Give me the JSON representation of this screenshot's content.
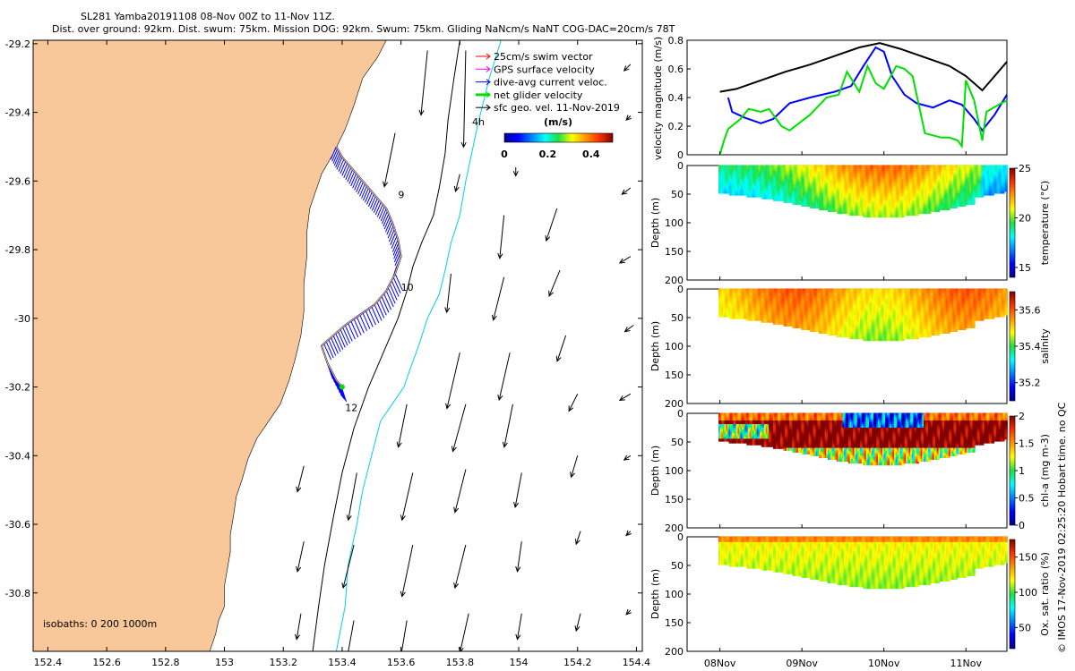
{
  "header": {
    "title_line1": "SL281 Yamba20191108 08-Nov 00Z to 11-Nov 11Z.",
    "title_line2": "Dist. over ground: 92km. Dist. swum: 75km. Mission DOG: 92km. Swum: 75km. Gliding NaNcm/s NaNT COG-DAC=20cm/s 78T"
  },
  "side_note": "© IMOS 17-Nov-2019 02:25:20 Hobart time. no QC",
  "colors": {
    "land": "#f9c89a",
    "track": "#0000ff",
    "net_velocity": "#00e000",
    "isobath_200": "#000000",
    "isobath_1000": "#00d0e8",
    "dac_line": "#0000ff",
    "geo_line": "#000000",
    "gps_line": "#00e000"
  },
  "chart_data": [
    {
      "type": "map",
      "xticks": [
        "152.4",
        "152.6",
        "152.8",
        "153",
        "153.2",
        "153.4",
        "153.6",
        "153.8",
        "154",
        "154.2",
        "154.4"
      ],
      "yticks": [
        "-29.2",
        "-29.4",
        "-29.6",
        "-29.8",
        "-30",
        "-30.2",
        "-30.4",
        "-30.6",
        "-30.8"
      ],
      "xlim": [
        152.35,
        154.42
      ],
      "ylim": [
        -30.97,
        -29.19
      ],
      "legend": [
        {
          "label": "25cm/s swim vector",
          "color": "#ff0000"
        },
        {
          "label": "GPS surface velocity",
          "color": "#ff00ff"
        },
        {
          "label": "dive-avg current veloc.",
          "color": "#0000ff"
        },
        {
          "label": "net glider velocity",
          "color": "#00e000"
        },
        {
          "label": "sfc geo. vel. 11-Nov-2019",
          "color": "#000000"
        }
      ],
      "extra_label": "4h",
      "colorbar": {
        "title": "(m/s)",
        "ticks": [
          "0",
          "0.2",
          "0.4"
        ],
        "range": [
          0,
          0.5
        ]
      },
      "isobath_note": "isobaths: 0   200   1000m",
      "day_labels": [
        {
          "label": "9",
          "lon": 153.59,
          "lat": -29.65
        },
        {
          "label": "10",
          "lon": 153.6,
          "lat": -29.92
        },
        {
          "label": "12",
          "lon": 153.41,
          "lat": -30.27
        }
      ],
      "track": [
        [
          153.38,
          -29.5
        ],
        [
          153.4,
          -29.53
        ],
        [
          153.43,
          -29.56
        ],
        [
          153.46,
          -29.59
        ],
        [
          153.49,
          -29.62
        ],
        [
          153.52,
          -29.65
        ],
        [
          153.55,
          -29.68
        ],
        [
          153.57,
          -29.72
        ],
        [
          153.59,
          -29.77
        ],
        [
          153.6,
          -29.82
        ],
        [
          153.58,
          -29.87
        ],
        [
          153.55,
          -29.92
        ],
        [
          153.51,
          -29.96
        ],
        [
          153.46,
          -29.99
        ],
        [
          153.41,
          -30.02
        ],
        [
          153.37,
          -30.05
        ],
        [
          153.33,
          -30.08
        ],
        [
          153.35,
          -30.13
        ],
        [
          153.38,
          -30.18
        ],
        [
          153.4,
          -30.2
        ]
      ],
      "coast": [
        [
          153.55,
          -29.19
        ],
        [
          153.52,
          -29.24
        ],
        [
          153.47,
          -29.3
        ],
        [
          153.44,
          -29.38
        ],
        [
          153.41,
          -29.45
        ],
        [
          153.37,
          -29.52
        ],
        [
          153.33,
          -29.58
        ],
        [
          153.31,
          -29.63
        ],
        [
          153.29,
          -29.68
        ],
        [
          153.28,
          -29.75
        ],
        [
          153.28,
          -29.82
        ],
        [
          153.27,
          -29.9
        ],
        [
          153.27,
          -29.98
        ],
        [
          153.26,
          -30.05
        ],
        [
          153.24,
          -30.12
        ],
        [
          153.22,
          -30.18
        ],
        [
          153.19,
          -30.25
        ],
        [
          153.15,
          -30.3
        ],
        [
          153.11,
          -30.35
        ],
        [
          153.08,
          -30.41
        ],
        [
          153.06,
          -30.47
        ],
        [
          153.04,
          -30.52
        ],
        [
          153.03,
          -30.58
        ],
        [
          153.02,
          -30.63
        ],
        [
          153.02,
          -30.68
        ],
        [
          153.01,
          -30.73
        ],
        [
          153.0,
          -30.78
        ],
        [
          153.0,
          -30.84
        ],
        [
          152.98,
          -30.88
        ],
        [
          152.97,
          -30.92
        ],
        [
          152.95,
          -30.97
        ]
      ],
      "isobath_200": [
        [
          153.8,
          -29.19
        ],
        [
          153.78,
          -29.3
        ],
        [
          153.76,
          -29.42
        ],
        [
          153.75,
          -29.52
        ],
        [
          153.73,
          -29.62
        ],
        [
          153.71,
          -29.7
        ],
        [
          153.67,
          -29.78
        ],
        [
          153.64,
          -29.85
        ],
        [
          153.62,
          -29.92
        ],
        [
          153.59,
          -30.0
        ],
        [
          153.54,
          -30.1
        ],
        [
          153.49,
          -30.2
        ],
        [
          153.44,
          -30.32
        ],
        [
          153.4,
          -30.45
        ],
        [
          153.37,
          -30.58
        ],
        [
          153.34,
          -30.72
        ],
        [
          153.32,
          -30.84
        ],
        [
          153.3,
          -30.97
        ]
      ],
      "isobath_1000": [
        [
          153.94,
          -29.19
        ],
        [
          153.9,
          -29.3
        ],
        [
          153.86,
          -29.44
        ],
        [
          153.84,
          -29.52
        ],
        [
          153.82,
          -29.6
        ],
        [
          153.8,
          -29.7
        ],
        [
          153.77,
          -29.78
        ],
        [
          153.75,
          -29.86
        ],
        [
          153.73,
          -29.93
        ],
        [
          153.69,
          -30.0
        ],
        [
          153.66,
          -30.08
        ],
        [
          153.63,
          -30.15
        ],
        [
          153.61,
          -30.2
        ],
        [
          153.57,
          -30.25
        ],
        [
          153.53,
          -30.3
        ],
        [
          153.5,
          -30.4
        ],
        [
          153.47,
          -30.5
        ],
        [
          153.45,
          -30.6
        ],
        [
          153.42,
          -30.72
        ],
        [
          153.41,
          -30.84
        ],
        [
          153.38,
          -30.97
        ]
      ],
      "geo_vectors": [
        {
          "lon": 153.82,
          "lat": -29.22,
          "u": -0.01,
          "v": -0.45
        },
        {
          "lon": 153.69,
          "lat": -29.22,
          "u": -0.03,
          "v": -0.3
        },
        {
          "lon": 154.38,
          "lat": -29.26,
          "u": -0.03,
          "v": -0.03
        },
        {
          "lon": 153.58,
          "lat": -29.46,
          "u": -0.05,
          "v": -0.25
        },
        {
          "lon": 154.38,
          "lat": -29.41,
          "u": -0.02,
          "v": -0.02
        },
        {
          "lon": 153.99,
          "lat": -29.56,
          "u": 0.0,
          "v": -0.04
        },
        {
          "lon": 153.8,
          "lat": -29.58,
          "u": -0.02,
          "v": -0.08
        },
        {
          "lon": 153.95,
          "lat": -29.7,
          "u": -0.02,
          "v": -0.2
        },
        {
          "lon": 154.13,
          "lat": -29.68,
          "u": -0.05,
          "v": -0.15
        },
        {
          "lon": 154.38,
          "lat": -29.62,
          "u": -0.04,
          "v": -0.03
        },
        {
          "lon": 153.77,
          "lat": -29.87,
          "u": -0.02,
          "v": -0.18
        },
        {
          "lon": 153.95,
          "lat": -29.88,
          "u": -0.05,
          "v": -0.2
        },
        {
          "lon": 154.14,
          "lat": -29.86,
          "u": -0.05,
          "v": -0.12
        },
        {
          "lon": 154.38,
          "lat": -29.82,
          "u": -0.05,
          "v": -0.03
        },
        {
          "lon": 153.8,
          "lat": -30.1,
          "u": -0.06,
          "v": -0.26
        },
        {
          "lon": 153.97,
          "lat": -30.1,
          "u": -0.05,
          "v": -0.22
        },
        {
          "lon": 154.16,
          "lat": -30.05,
          "u": -0.04,
          "v": -0.12
        },
        {
          "lon": 154.39,
          "lat": -30.02,
          "u": -0.04,
          "v": -0.03
        },
        {
          "lon": 153.62,
          "lat": -30.25,
          "u": -0.04,
          "v": -0.2
        },
        {
          "lon": 153.82,
          "lat": -30.25,
          "u": -0.06,
          "v": -0.22
        },
        {
          "lon": 153.98,
          "lat": -30.25,
          "u": -0.04,
          "v": -0.2
        },
        {
          "lon": 154.2,
          "lat": -30.22,
          "u": -0.04,
          "v": -0.08
        },
        {
          "lon": 154.38,
          "lat": -30.22,
          "u": -0.05,
          "v": -0.03
        },
        {
          "lon": 153.27,
          "lat": -30.43,
          "u": -0.03,
          "v": -0.12
        },
        {
          "lon": 153.45,
          "lat": -30.45,
          "u": -0.04,
          "v": -0.22
        },
        {
          "lon": 153.64,
          "lat": -30.45,
          "u": -0.05,
          "v": -0.22
        },
        {
          "lon": 153.82,
          "lat": -30.44,
          "u": -0.05,
          "v": -0.2
        },
        {
          "lon": 154.01,
          "lat": -30.45,
          "u": -0.03,
          "v": -0.16
        },
        {
          "lon": 154.2,
          "lat": -30.4,
          "u": -0.03,
          "v": -0.1
        },
        {
          "lon": 154.38,
          "lat": -30.4,
          "u": -0.03,
          "v": -0.02
        },
        {
          "lon": 153.27,
          "lat": -30.65,
          "u": -0.03,
          "v": -0.14
        },
        {
          "lon": 153.44,
          "lat": -30.66,
          "u": -0.05,
          "v": -0.2
        },
        {
          "lon": 153.64,
          "lat": -30.66,
          "u": -0.05,
          "v": -0.24
        },
        {
          "lon": 153.82,
          "lat": -30.66,
          "u": -0.05,
          "v": -0.2
        },
        {
          "lon": 154.01,
          "lat": -30.65,
          "u": -0.02,
          "v": -0.14
        },
        {
          "lon": 154.21,
          "lat": -30.62,
          "u": -0.02,
          "v": -0.06
        },
        {
          "lon": 154.38,
          "lat": -30.62,
          "u": -0.02,
          "v": -0.02
        },
        {
          "lon": 153.26,
          "lat": -30.86,
          "u": -0.02,
          "v": -0.12
        },
        {
          "lon": 153.44,
          "lat": -30.88,
          "u": -0.04,
          "v": -0.22
        },
        {
          "lon": 153.62,
          "lat": -30.88,
          "u": -0.04,
          "v": -0.24
        },
        {
          "lon": 153.83,
          "lat": -30.86,
          "u": -0.04,
          "v": -0.18
        },
        {
          "lon": 154.01,
          "lat": -30.86,
          "u": -0.02,
          "v": -0.12
        },
        {
          "lon": 154.21,
          "lat": -30.86,
          "u": -0.02,
          "v": -0.08
        },
        {
          "lon": 154.38,
          "lat": -30.85,
          "u": -0.02,
          "v": -0.02
        }
      ]
    },
    {
      "type": "line",
      "ylabel": "velocity magnitude (m/s)",
      "yticks": [
        "0",
        "0.2",
        "0.4",
        "0.6",
        "0.8"
      ],
      "ylim": [
        0,
        0.8
      ],
      "x_days": [
        8.0,
        11.5
      ],
      "xticks": [
        "08Nov",
        "09Nov",
        "10Nov",
        "11Nov"
      ],
      "series": [
        {
          "color": "#000000",
          "points": [
            [
              8.0,
              0.44
            ],
            [
              8.2,
              0.46
            ],
            [
              8.5,
              0.52
            ],
            [
              8.8,
              0.58
            ],
            [
              9.1,
              0.63
            ],
            [
              9.4,
              0.69
            ],
            [
              9.7,
              0.75
            ],
            [
              9.95,
              0.78
            ],
            [
              10.2,
              0.74
            ],
            [
              10.5,
              0.68
            ],
            [
              10.8,
              0.62
            ],
            [
              11.0,
              0.55
            ],
            [
              11.2,
              0.45
            ],
            [
              11.35,
              0.55
            ],
            [
              11.5,
              0.65
            ]
          ]
        },
        {
          "color": "#0000ff",
          "points": [
            [
              8.1,
              0.4
            ],
            [
              8.15,
              0.3
            ],
            [
              8.3,
              0.26
            ],
            [
              8.5,
              0.22
            ],
            [
              8.65,
              0.25
            ],
            [
              8.85,
              0.36
            ],
            [
              9.1,
              0.4
            ],
            [
              9.4,
              0.44
            ],
            [
              9.6,
              0.48
            ],
            [
              9.75,
              0.62
            ],
            [
              9.9,
              0.75
            ],
            [
              10.0,
              0.72
            ],
            [
              10.1,
              0.55
            ],
            [
              10.25,
              0.42
            ],
            [
              10.4,
              0.36
            ],
            [
              10.6,
              0.33
            ],
            [
              10.8,
              0.38
            ],
            [
              10.95,
              0.35
            ],
            [
              11.1,
              0.25
            ],
            [
              11.2,
              0.17
            ],
            [
              11.35,
              0.28
            ],
            [
              11.5,
              0.42
            ]
          ]
        },
        {
          "color": "#00e000",
          "points": [
            [
              8.0,
              0.0
            ],
            [
              8.05,
              0.1
            ],
            [
              8.1,
              0.18
            ],
            [
              8.25,
              0.25
            ],
            [
              8.35,
              0.32
            ],
            [
              8.5,
              0.3
            ],
            [
              8.6,
              0.32
            ],
            [
              8.75,
              0.2
            ],
            [
              8.85,
              0.17
            ],
            [
              9.1,
              0.28
            ],
            [
              9.3,
              0.4
            ],
            [
              9.45,
              0.42
            ],
            [
              9.55,
              0.58
            ],
            [
              9.7,
              0.44
            ],
            [
              9.8,
              0.62
            ],
            [
              9.9,
              0.5
            ],
            [
              10.0,
              0.46
            ],
            [
              10.15,
              0.62
            ],
            [
              10.25,
              0.6
            ],
            [
              10.35,
              0.55
            ],
            [
              10.5,
              0.15
            ],
            [
              10.7,
              0.12
            ],
            [
              10.8,
              0.12
            ],
            [
              10.9,
              0.1
            ],
            [
              10.95,
              0.06
            ],
            [
              11.0,
              0.52
            ],
            [
              11.1,
              0.38
            ],
            [
              11.2,
              0.1
            ],
            [
              11.25,
              0.3
            ],
            [
              11.4,
              0.35
            ],
            [
              11.5,
              0.38
            ]
          ]
        }
      ]
    },
    {
      "type": "heatmap",
      "var": "temperature",
      "cblabel": "temperature (°C)",
      "ylabel": "Depth (m)",
      "yticks": [
        "0",
        "50",
        "100",
        "150",
        "200"
      ],
      "cbticks": [
        {
          "v": 15,
          "l": "15"
        },
        {
          "v": 20,
          "l": "20"
        },
        {
          "v": 25,
          "l": "25"
        }
      ],
      "crange": [
        14,
        25
      ],
      "field": "temp"
    },
    {
      "type": "heatmap",
      "var": "salinity",
      "cblabel": "salinity",
      "ylabel": "Depth (m)",
      "yticks": [
        "0",
        "50",
        "100",
        "150",
        "200"
      ],
      "cbticks": [
        {
          "v": 35.2,
          "l": "35.2"
        },
        {
          "v": 35.4,
          "l": "35.4"
        },
        {
          "v": 35.6,
          "l": "35.6"
        }
      ],
      "crange": [
        35.1,
        35.7
      ],
      "field": "sal"
    },
    {
      "type": "heatmap",
      "var": "chl-a",
      "cblabel": "chl-a (mg m-3)",
      "ylabel": "Depth (m)",
      "yticks": [
        "0",
        "50",
        "100",
        "150",
        "200"
      ],
      "cbticks": [
        {
          "v": 0,
          "l": "0"
        },
        {
          "v": 0.5,
          "l": "0.5"
        },
        {
          "v": 1,
          "l": "1"
        },
        {
          "v": 1.5,
          "l": "1.5"
        },
        {
          "v": 2,
          "l": "2"
        }
      ],
      "crange": [
        0,
        2
      ],
      "field": "chl"
    },
    {
      "type": "heatmap",
      "var": "oxygen",
      "cblabel": "Ox. sat. ratio (%)",
      "ylabel": "Depth (m)",
      "yticks": [
        "0",
        "50",
        "100",
        "150",
        "200"
      ],
      "cbticks": [
        {
          "v": 50,
          "l": "50"
        },
        {
          "v": 100,
          "l": "100"
        },
        {
          "v": 150,
          "l": "150"
        }
      ],
      "crange": [
        20,
        175
      ],
      "field": "ox"
    }
  ]
}
